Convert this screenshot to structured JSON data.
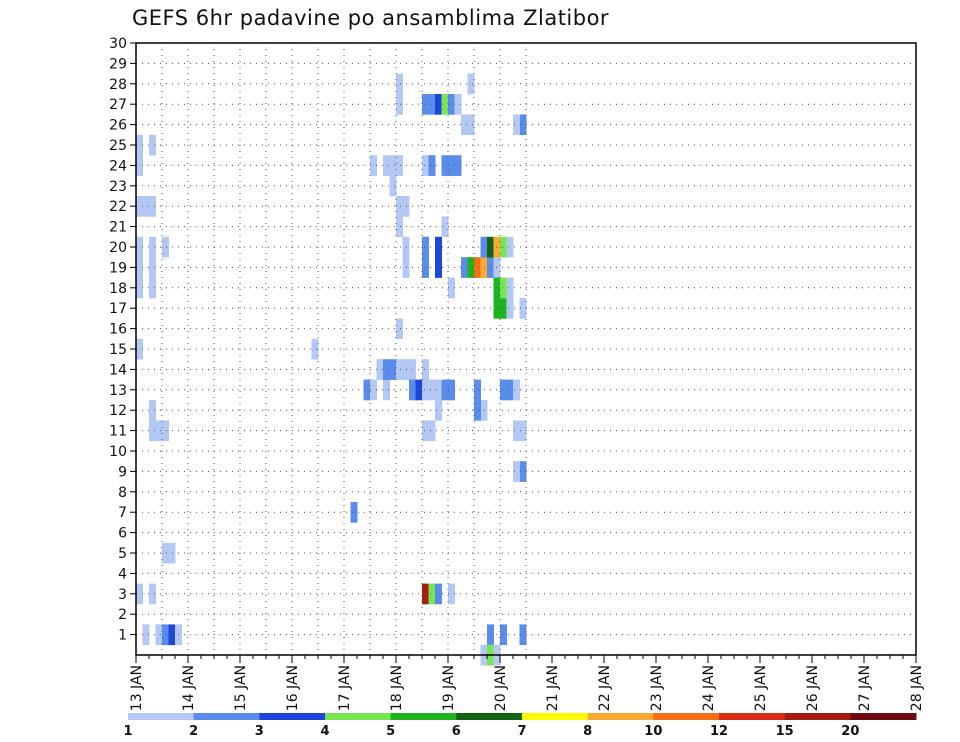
{
  "title": "GEFS 6hr padavine po ansamblima Zlatibor",
  "chart_data": {
    "type": "heatmap",
    "title": "GEFS 6hr padavine po ansamblima Zlatibor",
    "xlabel": "",
    "ylabel": "",
    "x_tick_labels": [
      "13 JAN",
      "14 JAN",
      "15 JAN",
      "16 JAN",
      "17 JAN",
      "18 JAN",
      "19 JAN",
      "20 JAN",
      "21 JAN",
      "22 JAN",
      "23 JAN",
      "24 JAN",
      "25 JAN",
      "26 JAN",
      "27 JAN",
      "28 JAN"
    ],
    "xlim": [
      0,
      60
    ],
    "x_unit": "6-hour steps from 13 JAN 00z",
    "y_tick_labels": [
      "1",
      "2",
      "3",
      "4",
      "5",
      "6",
      "7",
      "8",
      "9",
      "10",
      "11",
      "12",
      "13",
      "14",
      "15",
      "16",
      "17",
      "18",
      "19",
      "20",
      "21",
      "22",
      "23",
      "24",
      "25",
      "26",
      "27",
      "28",
      "29",
      "30"
    ],
    "ylim": [
      0,
      30
    ],
    "y_unit": "ensemble member",
    "grid": "dotted",
    "colorbar": {
      "labels": [
        "1",
        "2",
        "3",
        "4",
        "5",
        "6",
        "7",
        "8",
        "10",
        "12",
        "15",
        "20"
      ],
      "colors": [
        "#b4c8f5",
        "#5a8cec",
        "#1e46dc",
        "#78e650",
        "#1eb41e",
        "#146414",
        "#fafa00",
        "#faaa32",
        "#f56e14",
        "#dc2d14",
        "#a51e14",
        "#6e0a14"
      ]
    },
    "cells": [
      [
        0.5,
        1,
        0
      ],
      [
        1.5,
        1,
        0
      ],
      [
        2,
        1,
        1
      ],
      [
        2.5,
        1,
        2
      ],
      [
        3,
        1,
        0
      ],
      [
        0,
        3,
        0
      ],
      [
        1,
        3,
        0
      ],
      [
        2,
        5,
        0
      ],
      [
        2.5,
        5,
        0
      ],
      [
        1,
        11,
        0
      ],
      [
        1.5,
        11,
        0
      ],
      [
        2,
        11,
        0
      ],
      [
        1,
        12,
        0
      ],
      [
        0,
        15,
        0
      ],
      [
        0,
        18,
        0
      ],
      [
        1,
        18,
        0
      ],
      [
        0,
        19,
        0
      ],
      [
        1,
        19,
        0
      ],
      [
        0,
        20,
        0
      ],
      [
        1,
        20,
        0
      ],
      [
        2,
        20,
        0
      ],
      [
        0,
        22,
        0
      ],
      [
        0.5,
        22,
        0
      ],
      [
        1,
        22,
        0
      ],
      [
        0,
        24,
        0
      ],
      [
        0,
        25,
        0
      ],
      [
        1,
        25,
        0
      ],
      [
        13.5,
        15,
        0
      ],
      [
        16.5,
        7,
        1
      ],
      [
        17.5,
        13,
        1
      ],
      [
        18,
        13,
        0
      ],
      [
        19,
        13,
        0
      ],
      [
        18.5,
        14,
        0
      ],
      [
        19,
        14,
        1
      ],
      [
        19.5,
        14,
        1
      ],
      [
        20,
        14,
        0
      ],
      [
        20.5,
        14,
        0
      ],
      [
        21,
        14,
        0
      ],
      [
        18,
        24,
        0
      ],
      [
        19,
        24,
        0
      ],
      [
        19.5,
        24,
        0
      ],
      [
        20,
        24,
        0
      ],
      [
        19.5,
        23,
        0
      ],
      [
        20,
        21,
        0
      ],
      [
        20,
        22,
        0
      ],
      [
        20.5,
        22,
        0
      ],
      [
        20,
        27,
        0
      ],
      [
        20,
        28,
        0
      ],
      [
        20,
        16,
        0
      ],
      [
        20.5,
        19,
        0
      ],
      [
        20.5,
        20,
        0
      ],
      [
        21,
        13,
        1
      ],
      [
        21.5,
        13,
        2
      ],
      [
        22,
        13,
        0
      ],
      [
        22.5,
        13,
        0
      ],
      [
        23,
        13,
        0
      ],
      [
        23.5,
        13,
        1
      ],
      [
        24,
        13,
        1
      ],
      [
        22,
        14,
        0
      ],
      [
        24,
        18,
        0
      ],
      [
        23,
        12,
        0
      ],
      [
        22,
        11,
        0
      ],
      [
        22.5,
        11,
        0
      ],
      [
        22,
        19,
        1
      ],
      [
        23,
        19,
        2
      ],
      [
        22,
        20,
        1
      ],
      [
        23,
        20,
        2
      ],
      [
        23.5,
        21,
        0
      ],
      [
        22,
        24,
        0
      ],
      [
        22.5,
        24,
        1
      ],
      [
        23.5,
        24,
        1
      ],
      [
        24,
        24,
        1
      ],
      [
        24.5,
        24,
        1
      ],
      [
        22,
        27,
        1
      ],
      [
        22.5,
        27,
        1
      ],
      [
        23,
        27,
        2
      ],
      [
        23.5,
        27,
        3
      ],
      [
        24,
        27,
        1
      ],
      [
        24.5,
        27,
        0
      ],
      [
        25,
        26,
        0
      ],
      [
        25.5,
        26,
        0
      ],
      [
        25.5,
        28,
        0
      ],
      [
        22,
        3,
        10
      ],
      [
        22.5,
        3,
        3
      ],
      [
        23,
        3,
        1
      ],
      [
        24,
        3,
        0
      ],
      [
        25,
        19,
        1
      ],
      [
        25.5,
        19,
        4
      ],
      [
        26,
        19,
        8
      ],
      [
        26.5,
        19,
        7
      ],
      [
        27,
        19,
        1
      ],
      [
        27.5,
        19,
        0
      ],
      [
        26.5,
        20,
        1
      ],
      [
        27,
        20,
        5
      ],
      [
        27.5,
        20,
        7
      ],
      [
        28,
        20,
        3
      ],
      [
        28.5,
        20,
        0
      ],
      [
        26,
        13,
        1
      ],
      [
        26.5,
        12,
        0
      ],
      [
        26,
        12,
        1
      ],
      [
        27.5,
        17,
        4
      ],
      [
        28,
        17,
        4
      ],
      [
        28.5,
        17,
        0
      ],
      [
        27.5,
        18,
        4
      ],
      [
        28,
        18,
        3
      ],
      [
        28.5,
        18,
        0
      ],
      [
        29.5,
        17,
        0
      ],
      [
        28,
        13,
        1
      ],
      [
        28.5,
        13,
        1
      ],
      [
        29,
        13,
        0
      ],
      [
        27,
        1,
        1
      ],
      [
        28,
        1,
        1
      ],
      [
        29.5,
        1,
        1
      ],
      [
        26.5,
        0,
        0
      ],
      [
        27,
        0,
        3
      ],
      [
        27.5,
        0,
        0
      ],
      [
        29.5,
        26,
        1
      ],
      [
        29.5,
        9,
        1
      ],
      [
        29,
        9,
        0
      ],
      [
        29,
        11,
        0
      ],
      [
        29.5,
        11,
        0
      ],
      [
        29,
        26,
        0
      ]
    ]
  }
}
